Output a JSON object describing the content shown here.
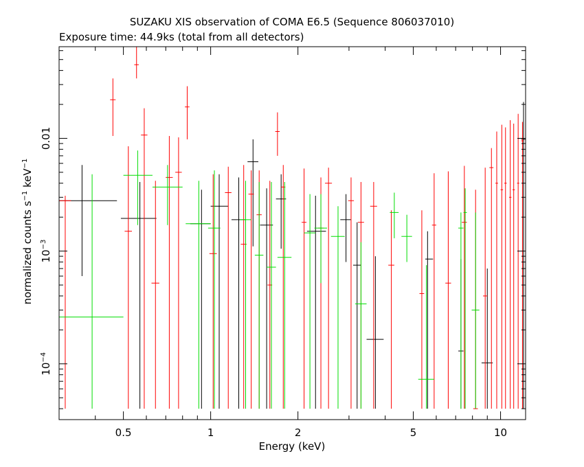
{
  "chart_data": {
    "type": "scatter",
    "title": "SUZAKU XIS observation of COMA E6.5 (Sequence 806037010)",
    "subtitle": "Exposure time: 44.9ks (total from all detectors)",
    "xlabel": "Energy (keV)",
    "ylabel_main": "normalized counts s",
    "ylabel_sup1": "−1",
    "ylabel_mid": " keV",
    "ylabel_sup2": "−1",
    "x_scale": "log",
    "y_scale": "log",
    "xlim": [
      0.3,
      12.2
    ],
    "ylim": [
      3.2e-05,
      0.065
    ],
    "x_ticks": [
      0.5,
      1,
      2,
      5,
      10
    ],
    "x_tick_labels": [
      "0.5",
      "1",
      "2",
      "5",
      "10"
    ],
    "y_ticks": [
      0.0001,
      0.001,
      0.01
    ],
    "y_tick_mantissas": [
      "10",
      "10",
      "0.01"
    ],
    "y_tick_exponents": [
      "−4",
      "−3",
      ""
    ],
    "grid": false,
    "legend": "none",
    "series": [
      {
        "color": "#000000",
        "points": [
          {
            "x": 0.36,
            "xlo": 0.3,
            "xhi": 0.475,
            "y": 0.0028,
            "ylo": 0.0006,
            "yhi": 0.0058
          },
          {
            "x": 0.57,
            "xlo": 0.49,
            "xhi": 0.65,
            "y": 0.00195,
            "ylo": 4e-05,
            "yhi": 0.0041
          },
          {
            "x": 0.93,
            "xlo": 0.85,
            "xhi": 1.0,
            "y": 0.00175,
            "ylo": 4e-05,
            "yhi": 0.0035
          },
          {
            "x": 1.07,
            "xlo": 1.0,
            "xhi": 1.15,
            "y": 0.0025,
            "ylo": 4e-05,
            "yhi": 0.0048
          },
          {
            "x": 1.25,
            "xlo": 1.18,
            "xhi": 1.32,
            "y": 0.0019,
            "ylo": 4e-05,
            "yhi": 0.0045
          },
          {
            "x": 1.4,
            "xlo": 1.34,
            "xhi": 1.46,
            "y": 0.0062,
            "ylo": 0.0011,
            "yhi": 0.0098
          },
          {
            "x": 1.56,
            "xlo": 1.48,
            "xhi": 1.64,
            "y": 0.0017,
            "ylo": 4e-05,
            "yhi": 0.0036
          },
          {
            "x": 1.75,
            "xlo": 1.68,
            "xhi": 1.82,
            "y": 0.0029,
            "ylo": 0.00105,
            "yhi": 0.0048
          },
          {
            "x": 2.3,
            "xlo": 2.15,
            "xhi": 2.5,
            "y": 0.0015,
            "ylo": 4e-05,
            "yhi": 0.0031
          },
          {
            "x": 2.93,
            "xlo": 2.8,
            "xhi": 3.05,
            "y": 0.0019,
            "ylo": 0.0008,
            "yhi": 0.0032
          },
          {
            "x": 3.2,
            "xlo": 3.1,
            "xhi": 3.3,
            "y": 0.00075,
            "ylo": 4e-05,
            "yhi": 0.0018
          },
          {
            "x": 3.7,
            "xlo": 3.45,
            "xhi": 3.95,
            "y": 0.000165,
            "ylo": 4e-05,
            "yhi": 0.0009
          },
          {
            "x": 5.6,
            "xlo": 5.5,
            "xhi": 5.85,
            "y": 0.00085,
            "ylo": 4e-05,
            "yhi": 0.0015
          },
          {
            "x": 7.3,
            "xlo": 7.15,
            "xhi": 7.45,
            "y": 0.00013,
            "ylo": 4e-05,
            "yhi": 0.00085
          },
          {
            "x": 9.0,
            "xlo": 8.6,
            "xhi": 9.4,
            "y": 0.000102,
            "ylo": 4e-05,
            "yhi": 0.0007
          },
          {
            "x": 12.0,
            "xlo": 11.8,
            "xhi": 12.2,
            "y": 0.0098,
            "ylo": 4e-05,
            "yhi": 0.021
          }
        ]
      },
      {
        "color": "#ff0000",
        "points": [
          {
            "x": 0.315,
            "xlo": 0.3,
            "xhi": 0.33,
            "y": 0.0028,
            "ylo": 4e-05,
            "yhi": 0.0031
          },
          {
            "x": 0.46,
            "xlo": 0.45,
            "xhi": 0.47,
            "y": 0.022,
            "ylo": 0.0105,
            "yhi": 0.034
          },
          {
            "x": 0.52,
            "xlo": 0.505,
            "xhi": 0.535,
            "y": 0.0015,
            "ylo": 4e-05,
            "yhi": 0.0085
          },
          {
            "x": 0.555,
            "xlo": 0.545,
            "xhi": 0.565,
            "y": 0.045,
            "ylo": 0.034,
            "yhi": 0.065
          },
          {
            "x": 0.59,
            "xlo": 0.575,
            "xhi": 0.605,
            "y": 0.0107,
            "ylo": 4e-05,
            "yhi": 0.0185
          },
          {
            "x": 0.645,
            "xlo": 0.625,
            "xhi": 0.665,
            "y": 0.00052,
            "ylo": 4e-05,
            "yhi": 0.0042
          },
          {
            "x": 0.72,
            "xlo": 0.7,
            "xhi": 0.74,
            "y": 0.0045,
            "ylo": 4e-05,
            "yhi": 0.0105
          },
          {
            "x": 0.775,
            "xlo": 0.755,
            "xhi": 0.795,
            "y": 0.005,
            "ylo": 4e-05,
            "yhi": 0.0102
          },
          {
            "x": 0.83,
            "xlo": 0.815,
            "xhi": 0.845,
            "y": 0.019,
            "ylo": 0.0098,
            "yhi": 0.029
          },
          {
            "x": 1.02,
            "xlo": 0.99,
            "xhi": 1.05,
            "y": 0.00095,
            "ylo": 4e-05,
            "yhi": 0.0048
          },
          {
            "x": 1.15,
            "xlo": 1.12,
            "xhi": 1.18,
            "y": 0.0033,
            "ylo": 4e-05,
            "yhi": 0.0056
          },
          {
            "x": 1.3,
            "xlo": 1.27,
            "xhi": 1.33,
            "y": 0.00115,
            "ylo": 4e-05,
            "yhi": 0.0058
          },
          {
            "x": 1.38,
            "xlo": 1.35,
            "xhi": 1.41,
            "y": 0.0032,
            "ylo": 4e-05,
            "yhi": 0.0052
          },
          {
            "x": 1.47,
            "xlo": 1.44,
            "xhi": 1.5,
            "y": 0.0021,
            "ylo": 4e-05,
            "yhi": 0.0052
          },
          {
            "x": 1.6,
            "xlo": 1.57,
            "xhi": 1.63,
            "y": 0.0005,
            "ylo": 4e-05,
            "yhi": 0.0042
          },
          {
            "x": 1.7,
            "xlo": 1.67,
            "xhi": 1.73,
            "y": 0.0115,
            "ylo": 0.007,
            "yhi": 0.017
          },
          {
            "x": 1.78,
            "xlo": 1.75,
            "xhi": 1.81,
            "y": 0.0037,
            "ylo": 4e-05,
            "yhi": 0.0058
          },
          {
            "x": 2.1,
            "xlo": 2.06,
            "xhi": 2.14,
            "y": 0.0018,
            "ylo": 4e-05,
            "yhi": 0.0054
          },
          {
            "x": 2.4,
            "xlo": 2.35,
            "xhi": 2.45,
            "y": 0.0016,
            "ylo": 4e-05,
            "yhi": 0.0045
          },
          {
            "x": 2.55,
            "xlo": 2.48,
            "xhi": 2.62,
            "y": 0.004,
            "ylo": 4e-05,
            "yhi": 0.0055
          },
          {
            "x": 3.05,
            "xlo": 2.98,
            "xhi": 3.12,
            "y": 0.0028,
            "ylo": 4e-05,
            "yhi": 0.0045
          },
          {
            "x": 3.3,
            "xlo": 3.22,
            "xhi": 3.38,
            "y": 0.0018,
            "ylo": 4e-05,
            "yhi": 0.0041
          },
          {
            "x": 3.65,
            "xlo": 3.55,
            "xhi": 3.75,
            "y": 0.0025,
            "ylo": 4e-05,
            "yhi": 0.0041
          },
          {
            "x": 4.2,
            "xlo": 4.1,
            "xhi": 4.3,
            "y": 0.00075,
            "ylo": 4e-05,
            "yhi": 0.0023
          },
          {
            "x": 5.35,
            "xlo": 5.25,
            "xhi": 5.45,
            "y": 0.00042,
            "ylo": 4e-05,
            "yhi": 0.0023
          },
          {
            "x": 5.9,
            "xlo": 5.8,
            "xhi": 6.0,
            "y": 0.0017,
            "ylo": 4e-05,
            "yhi": 0.0049
          },
          {
            "x": 6.6,
            "xlo": 6.45,
            "xhi": 6.75,
            "y": 0.00052,
            "ylo": 4e-05,
            "yhi": 0.0051
          },
          {
            "x": 7.5,
            "xlo": 7.35,
            "xhi": 7.65,
            "y": 0.0018,
            "ylo": 4e-05,
            "yhi": 0.0057
          },
          {
            "x": 8.2,
            "xlo": 8.05,
            "xhi": 8.35,
            "y": 4e-05,
            "ylo": 4e-05,
            "yhi": 0.0035
          },
          {
            "x": 8.85,
            "xlo": 8.7,
            "xhi": 9.0,
            "y": 0.0004,
            "ylo": 4e-05,
            "yhi": 0.0055
          },
          {
            "x": 9.3,
            "xlo": 9.15,
            "xhi": 9.45,
            "y": 0.0055,
            "ylo": 4e-05,
            "yhi": 0.0082
          },
          {
            "x": 9.7,
            "xlo": 9.6,
            "xhi": 9.8,
            "y": 0.004,
            "ylo": 4e-05,
            "yhi": 0.0115
          },
          {
            "x": 10.1,
            "xlo": 10.0,
            "xhi": 10.2,
            "y": 0.0035,
            "ylo": 4e-05,
            "yhi": 0.0132
          },
          {
            "x": 10.4,
            "xlo": 10.3,
            "xhi": 10.5,
            "y": 0.004,
            "ylo": 4e-05,
            "yhi": 0.0125
          },
          {
            "x": 10.8,
            "xlo": 10.7,
            "xhi": 10.9,
            "y": 0.003,
            "ylo": 4e-05,
            "yhi": 0.0145
          },
          {
            "x": 11.1,
            "xlo": 11.0,
            "xhi": 11.2,
            "y": 0.0035,
            "ylo": 4e-05,
            "yhi": 0.0135
          },
          {
            "x": 11.5,
            "xlo": 11.4,
            "xhi": 11.6,
            "y": 0.004,
            "ylo": 4e-05,
            "yhi": 0.0165
          },
          {
            "x": 11.9,
            "xlo": 11.8,
            "xhi": 12.0,
            "y": 0.0095,
            "ylo": 4e-05,
            "yhi": 0.014
          }
        ]
      },
      {
        "color": "#00dd00",
        "points": [
          {
            "x": 0.39,
            "xlo": 0.3,
            "xhi": 0.5,
            "y": 0.00026,
            "ylo": 4e-05,
            "yhi": 0.0048
          },
          {
            "x": 0.56,
            "xlo": 0.5,
            "xhi": 0.63,
            "y": 0.0047,
            "ylo": 0.0017,
            "yhi": 0.0078
          },
          {
            "x": 0.71,
            "xlo": 0.63,
            "xhi": 0.8,
            "y": 0.0037,
            "ylo": 0.0017,
            "yhi": 0.0058
          },
          {
            "x": 0.91,
            "xlo": 0.82,
            "xhi": 1.0,
            "y": 0.00175,
            "ylo": 4e-05,
            "yhi": 0.0042
          },
          {
            "x": 1.03,
            "xlo": 0.98,
            "xhi": 1.08,
            "y": 0.0016,
            "ylo": 4e-05,
            "yhi": 0.0052
          },
          {
            "x": 1.32,
            "xlo": 1.26,
            "xhi": 1.38,
            "y": 0.0019,
            "ylo": 4e-05,
            "yhi": 0.0042
          },
          {
            "x": 1.47,
            "xlo": 1.42,
            "xhi": 1.52,
            "y": 0.00092,
            "ylo": 4e-05,
            "yhi": 0.0041
          },
          {
            "x": 1.62,
            "xlo": 1.56,
            "xhi": 1.68,
            "y": 0.00072,
            "ylo": 4e-05,
            "yhi": 0.0041
          },
          {
            "x": 1.8,
            "xlo": 1.7,
            "xhi": 1.9,
            "y": 0.00088,
            "ylo": 4e-05,
            "yhi": 0.0041
          },
          {
            "x": 2.2,
            "xlo": 2.1,
            "xhi": 2.3,
            "y": 0.00145,
            "ylo": 4e-05,
            "yhi": 0.0032
          },
          {
            "x": 2.4,
            "xlo": 2.28,
            "xhi": 2.52,
            "y": 0.0016,
            "ylo": 0.00052,
            "yhi": 0.0032
          },
          {
            "x": 2.75,
            "xlo": 2.6,
            "xhi": 2.9,
            "y": 0.00135,
            "ylo": 4e-05,
            "yhi": 0.0025
          },
          {
            "x": 3.3,
            "xlo": 3.15,
            "xhi": 3.45,
            "y": 0.00034,
            "ylo": 4e-05,
            "yhi": 0.0012
          },
          {
            "x": 4.3,
            "xlo": 4.15,
            "xhi": 4.45,
            "y": 0.0022,
            "ylo": 0.0013,
            "yhi": 0.0033
          },
          {
            "x": 4.75,
            "xlo": 4.55,
            "xhi": 4.95,
            "y": 0.00135,
            "ylo": 0.0008,
            "yhi": 0.0021
          },
          {
            "x": 5.55,
            "xlo": 5.2,
            "xhi": 5.9,
            "y": 7.3e-05,
            "ylo": 4e-05,
            "yhi": 0.00075
          },
          {
            "x": 7.3,
            "xlo": 7.15,
            "xhi": 7.45,
            "y": 0.0016,
            "ylo": 4e-05,
            "yhi": 0.0022
          },
          {
            "x": 7.55,
            "xlo": 7.45,
            "xhi": 7.65,
            "y": 0.0022,
            "ylo": 4e-05,
            "yhi": 0.0036
          },
          {
            "x": 8.2,
            "xlo": 7.95,
            "xhi": 8.45,
            "y": 0.0003,
            "ylo": 4e-05,
            "yhi": 0.0022
          }
        ]
      }
    ]
  }
}
